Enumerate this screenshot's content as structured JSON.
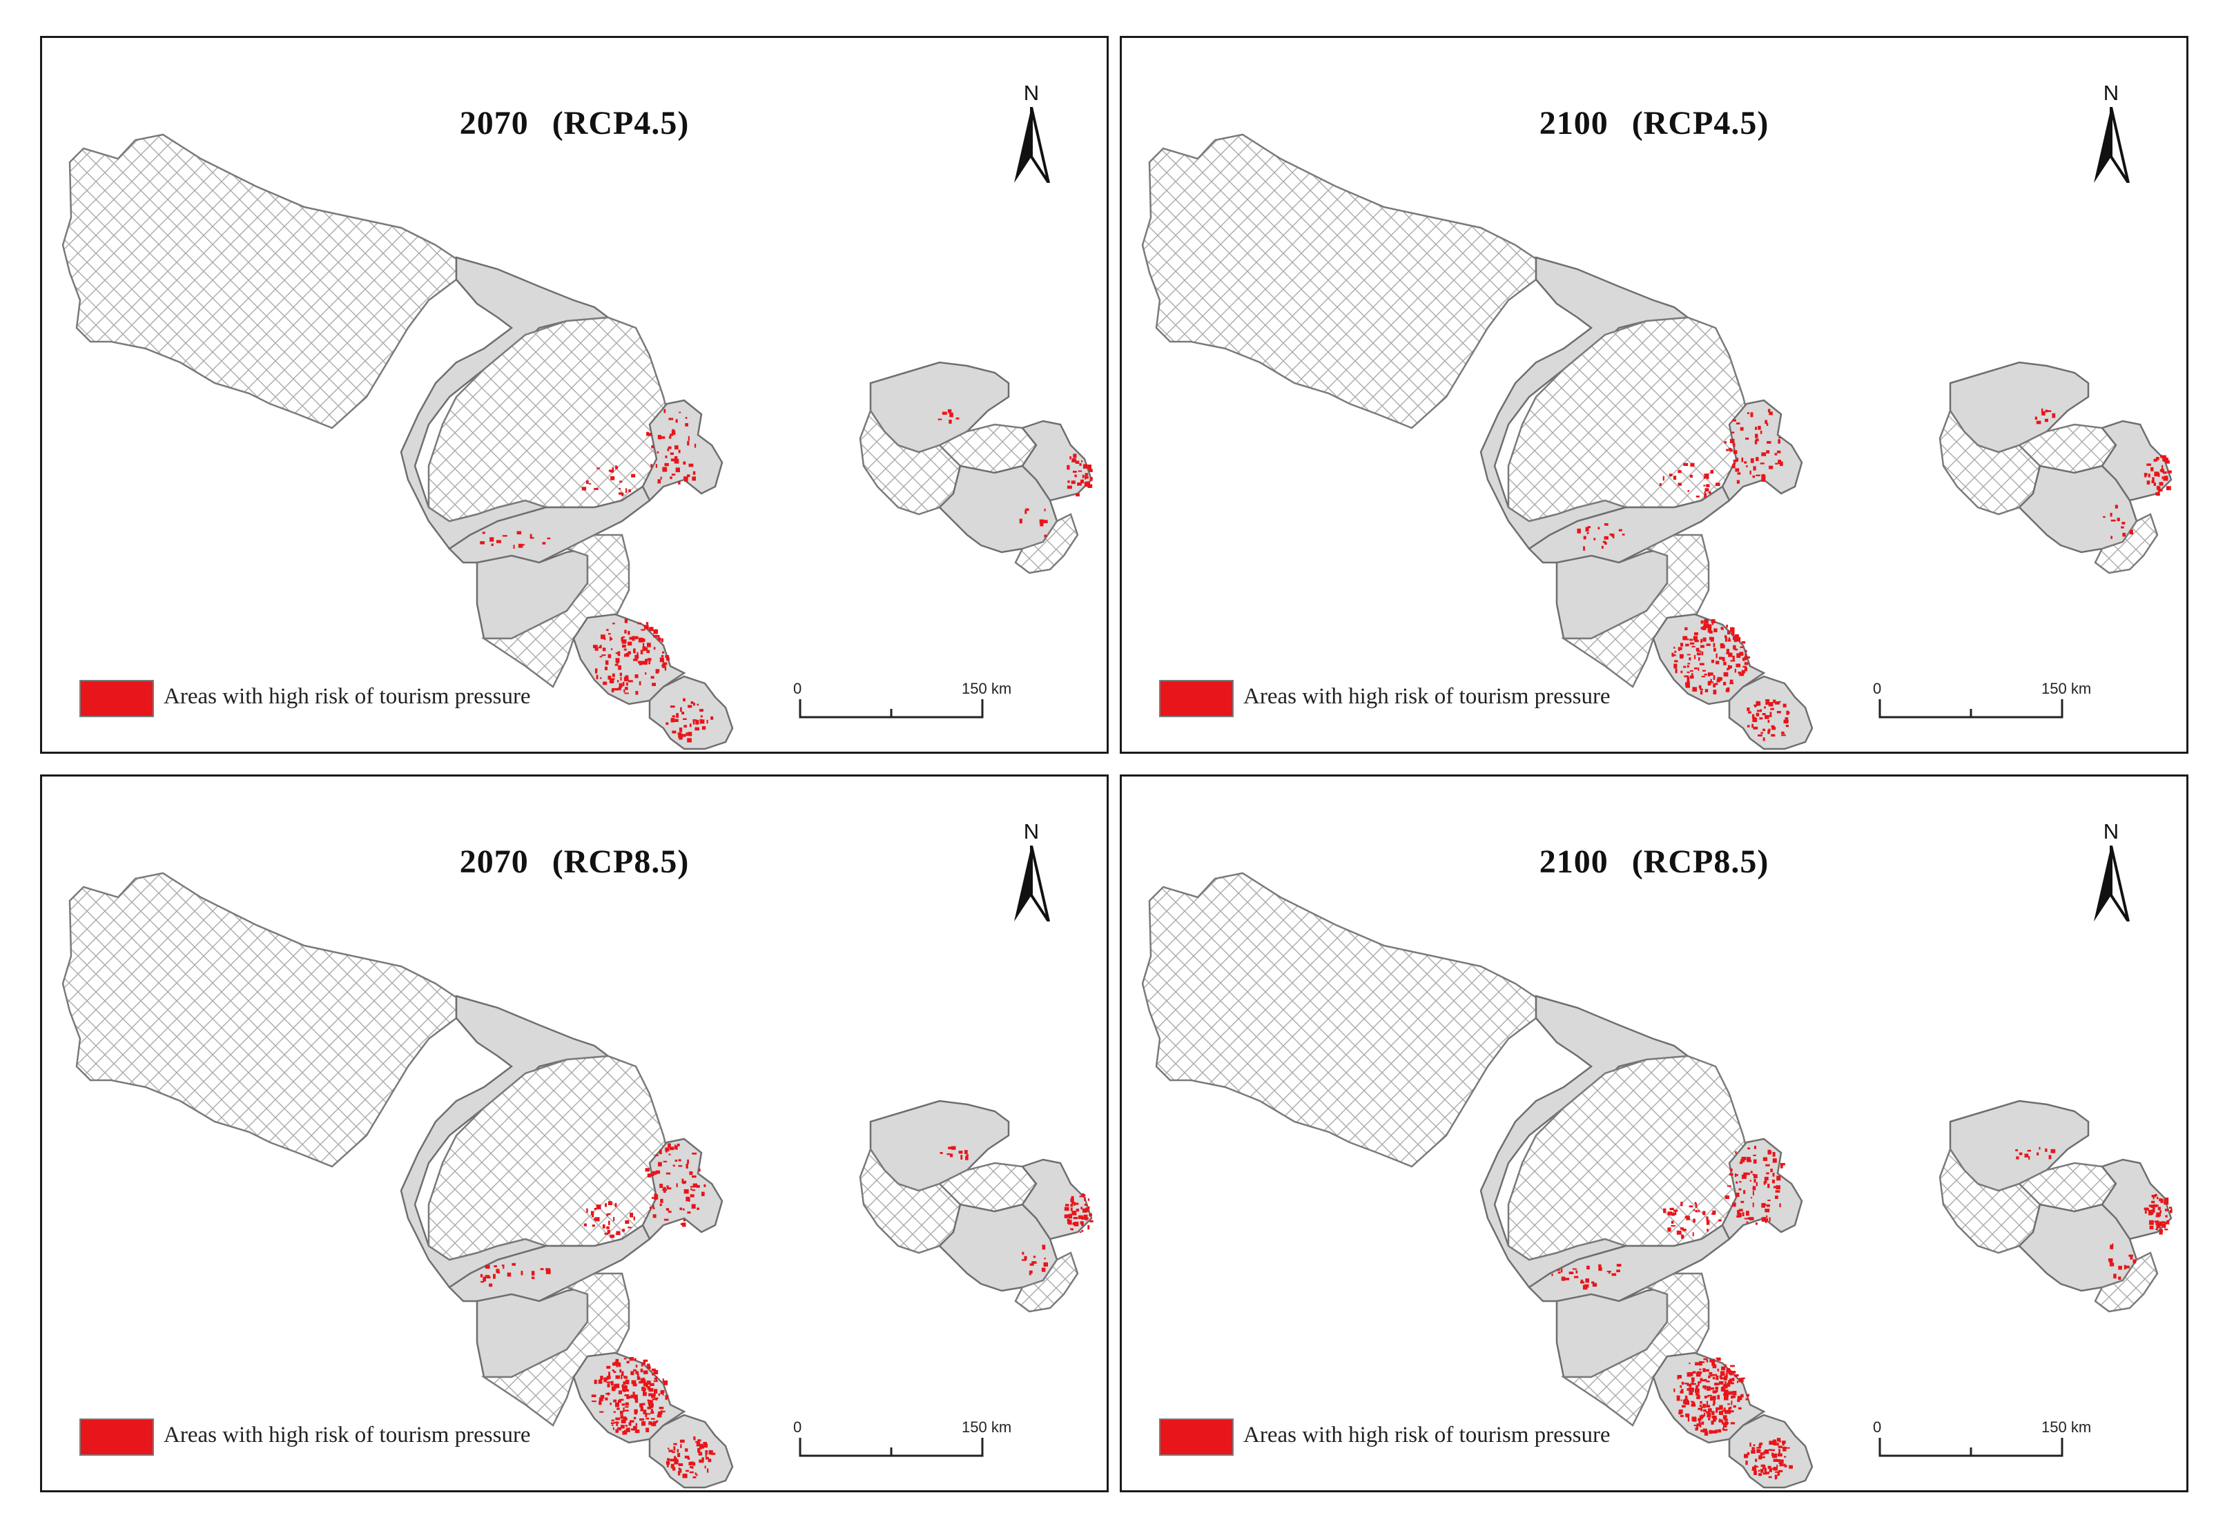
{
  "panels": [
    {
      "year": "2070",
      "scenario": "(RCP4.5)"
    },
    {
      "year": "2100",
      "scenario": "(RCP4.5)"
    },
    {
      "year": "2070",
      "scenario": "(RCP8.5)"
    },
    {
      "year": "2100",
      "scenario": "(RCP8.5)"
    }
  ],
  "north_label": "N",
  "legend": {
    "label": "Areas with high risk of tourism pressure",
    "color": "#e8151a"
  },
  "scale": {
    "start_label": "0",
    "end_label": "150 km"
  },
  "colors": {
    "region_fill": "#d9d9d9",
    "hatch": "#a9a9a9",
    "outline": "#6e6e6e",
    "frame": "#1a1a1a"
  }
}
